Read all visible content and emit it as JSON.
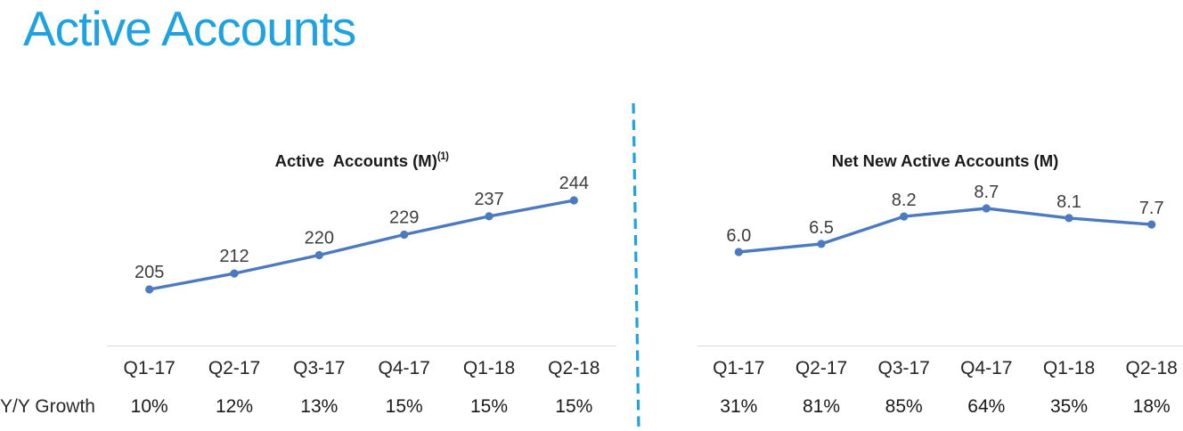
{
  "slide_title": "Active Accounts",
  "yoy_label": "Y/Y Growth",
  "colors": {
    "accent_blue": "#1FA3E0",
    "series_blue": "#4C7AC0",
    "axis_gray": "#D9D9D9",
    "label_gray": "#3D3D3D"
  },
  "chart_data": [
    {
      "type": "line",
      "title": "Active  Accounts (M)",
      "title_superscript": "(1)",
      "categories": [
        "Q1-17",
        "Q2-17",
        "Q3-17",
        "Q4-17",
        "Q1-18",
        "Q2-18"
      ],
      "values": [
        205,
        212,
        220,
        229,
        237,
        244
      ],
      "value_labels": [
        "205",
        "212",
        "220",
        "229",
        "237",
        "244"
      ],
      "yoy_growth": [
        "10%",
        "12%",
        "13%",
        "15%",
        "15%",
        "15%"
      ],
      "xlabel": "",
      "ylabel": "",
      "y_axis": "hidden",
      "grid": false,
      "legend_position": "none",
      "marker": "circle"
    },
    {
      "type": "line",
      "title": "Net New Active Accounts (M)",
      "categories": [
        "Q1-17",
        "Q2-17",
        "Q3-17",
        "Q4-17",
        "Q1-18",
        "Q2-18"
      ],
      "values": [
        6.0,
        6.5,
        8.2,
        8.7,
        8.1,
        7.7
      ],
      "value_labels": [
        "6.0",
        "6.5",
        "8.2",
        "8.7",
        "8.1",
        "7.7"
      ],
      "yoy_growth": [
        "31%",
        "81%",
        "85%",
        "64%",
        "35%",
        "18%"
      ],
      "xlabel": "",
      "ylabel": "",
      "y_axis": "hidden",
      "grid": false,
      "legend_position": "none",
      "marker": "circle"
    }
  ]
}
